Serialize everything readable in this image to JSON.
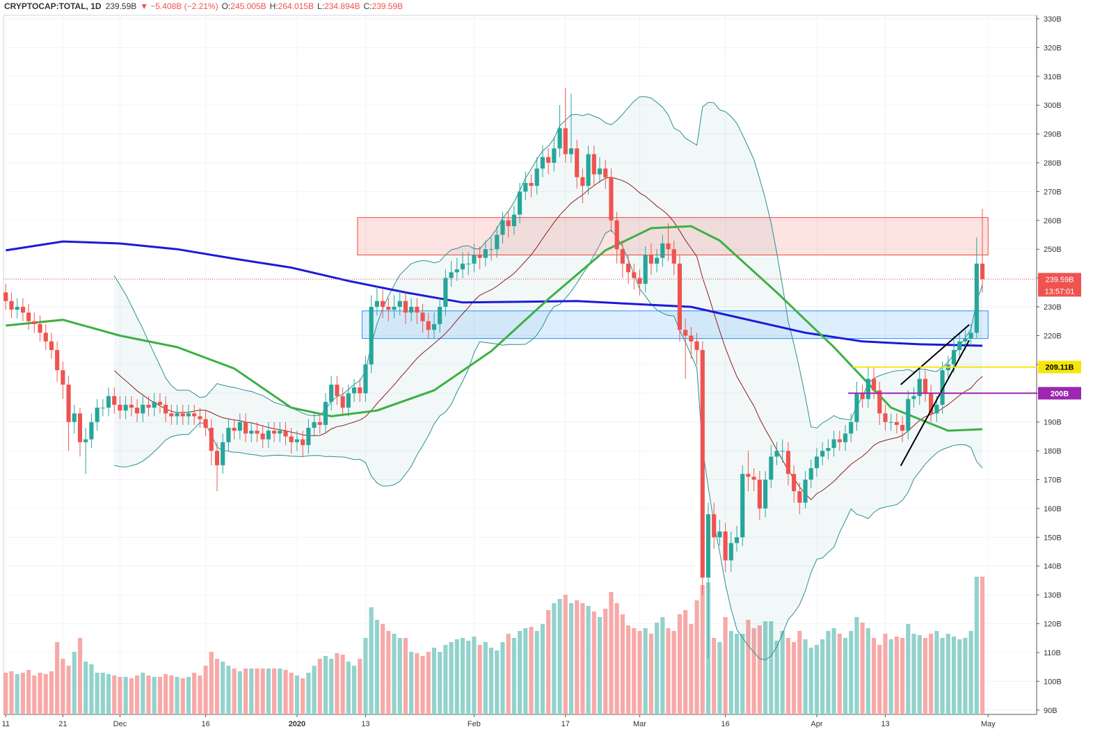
{
  "header": {
    "symbol": "CRYPTOCAP:TOTAL, 1D",
    "price": "239.59B",
    "change": "−5.408B (−2.21%)",
    "ohlc": [
      {
        "label": "O:",
        "value": "245.005B"
      },
      {
        "label": "H:",
        "value": "264.015B"
      },
      {
        "label": "L:",
        "value": "234.894B"
      },
      {
        "label": "C:",
        "value": "239.59B"
      }
    ]
  },
  "chart_data": {
    "type": "candlestick",
    "up_color": "#26a69a",
    "down_color": "#ef5350",
    "volume_up_color": "#92d2cc",
    "volume_down_color": "#f7a9a7",
    "open": [
      235,
      232,
      229,
      230,
      228,
      225,
      224,
      221,
      218,
      215,
      208,
      203,
      190,
      193,
      183,
      184,
      190,
      195,
      195,
      199,
      196,
      194,
      196,
      195,
      193,
      196,
      195,
      197,
      196,
      193,
      192,
      193,
      192,
      193,
      192,
      191,
      188,
      180,
      175,
      183,
      188,
      187,
      190,
      186,
      187,
      186,
      184,
      187,
      186,
      187,
      185,
      183,
      184,
      182,
      188,
      190,
      189,
      197,
      203,
      199,
      195,
      200,
      202,
      200,
      210,
      230,
      232,
      230,
      229,
      230,
      232,
      228,
      230,
      228,
      225,
      222,
      224,
      230,
      240,
      242,
      243,
      245,
      245,
      248,
      247,
      250,
      250,
      255,
      260,
      258,
      262,
      270,
      273,
      272,
      278,
      282,
      280,
      285,
      292,
      283,
      285,
      275,
      272,
      283,
      276,
      278,
      275,
      260,
      250,
      245,
      242,
      240,
      238,
      248,
      245,
      247,
      252,
      250,
      245,
      222,
      220,
      218,
      215,
      136,
      158,
      150,
      152,
      142,
      148,
      150,
      172,
      171,
      170,
      160,
      170,
      178,
      180,
      180,
      172,
      166,
      162,
      170,
      174,
      178,
      180,
      181,
      184,
      183,
      186,
      190,
      200,
      198,
      205,
      201,
      193,
      190,
      190,
      189,
      187,
      198,
      199,
      205,
      200,
      193,
      196,
      208,
      210,
      215,
      218,
      219,
      221,
      245.005
    ],
    "high": [
      238,
      235,
      233,
      233,
      231,
      228,
      227,
      224,
      221,
      218,
      211,
      206,
      196,
      195,
      188,
      193,
      198,
      198,
      202,
      202,
      199,
      199,
      199,
      198,
      199,
      199,
      200,
      200,
      199,
      196,
      196,
      196,
      196,
      196,
      195,
      194,
      191,
      183,
      186,
      191,
      191,
      193,
      193,
      190,
      190,
      189,
      190,
      190,
      190,
      190,
      188,
      187,
      187,
      191,
      193,
      193,
      200,
      206,
      206,
      202,
      203,
      205,
      205,
      213,
      234,
      237,
      236,
      233,
      234,
      236,
      235,
      233,
      233,
      231,
      228,
      228,
      233,
      243,
      246,
      247,
      249,
      249,
      252,
      251,
      253,
      254,
      258,
      263,
      263,
      265,
      273,
      277,
      276,
      282,
      286,
      285,
      289,
      300,
      306,
      304,
      288,
      278,
      286,
      286,
      282,
      281,
      278,
      263,
      253,
      248,
      245,
      243,
      251,
      252,
      250,
      255,
      259,
      253,
      248,
      226,
      223,
      221,
      218,
      162,
      162,
      156,
      155,
      152,
      154,
      175,
      180,
      174,
      173,
      173,
      182,
      183,
      184,
      183,
      175,
      169,
      173,
      177,
      181,
      183,
      184,
      187,
      187,
      189,
      193,
      204,
      203,
      209,
      209,
      204,
      196,
      193,
      193,
      192,
      201,
      202,
      208,
      208,
      203,
      199,
      211,
      213,
      220,
      221,
      222,
      224,
      254,
      264.015
    ],
    "low": [
      229,
      226,
      226,
      225,
      222,
      221,
      218,
      215,
      212,
      204,
      198,
      180,
      186,
      178,
      172,
      181,
      187,
      192,
      192,
      193,
      191,
      191,
      192,
      190,
      190,
      192,
      192,
      193,
      190,
      189,
      189,
      189,
      189,
      189,
      188,
      185,
      175,
      166,
      172,
      180,
      184,
      184,
      183,
      183,
      183,
      181,
      181,
      183,
      183,
      182,
      179,
      180,
      178,
      179,
      185,
      186,
      186,
      194,
      196,
      192,
      192,
      197,
      197,
      197,
      207,
      227,
      226,
      225,
      226,
      227,
      224,
      225,
      224,
      221,
      219,
      219,
      221,
      227,
      237,
      239,
      240,
      241,
      242,
      243,
      244,
      246,
      247,
      252,
      254,
      255,
      259,
      267,
      268,
      269,
      275,
      276,
      277,
      282,
      280,
      280,
      271,
      266,
      269,
      272,
      273,
      271,
      256,
      245,
      240,
      238,
      236,
      234,
      235,
      241,
      242,
      244,
      246,
      241,
      218,
      205,
      212,
      210,
      130,
      108,
      146,
      147,
      138,
      138,
      145,
      147,
      166,
      166,
      156,
      157,
      167,
      175,
      176,
      168,
      162,
      158,
      160,
      167,
      171,
      175,
      177,
      178,
      180,
      180,
      183,
      187,
      195,
      195,
      198,
      189,
      187,
      187,
      186,
      183,
      184,
      195,
      196,
      197,
      190,
      190,
      193,
      205,
      207,
      212,
      215,
      216,
      219,
      234.894
    ],
    "close": [
      232,
      229,
      230,
      228,
      225,
      224,
      221,
      218,
      215,
      208,
      203,
      190,
      193,
      183,
      184,
      190,
      195,
      195,
      199,
      196,
      194,
      196,
      195,
      193,
      196,
      195,
      197,
      196,
      193,
      192,
      193,
      192,
      193,
      192,
      191,
      188,
      180,
      175,
      183,
      188,
      187,
      190,
      186,
      187,
      186,
      184,
      187,
      186,
      187,
      185,
      183,
      184,
      182,
      188,
      190,
      189,
      197,
      203,
      199,
      195,
      200,
      202,
      200,
      210,
      230,
      232,
      230,
      229,
      230,
      232,
      228,
      230,
      228,
      225,
      222,
      224,
      230,
      240,
      242,
      243,
      245,
      245,
      248,
      247,
      250,
      250,
      255,
      260,
      258,
      262,
      270,
      273,
      272,
      278,
      282,
      280,
      285,
      292,
      283,
      285,
      275,
      272,
      283,
      276,
      278,
      275,
      260,
      250,
      245,
      242,
      240,
      238,
      248,
      245,
      247,
      252,
      250,
      245,
      222,
      220,
      218,
      215,
      136,
      158,
      150,
      152,
      142,
      148,
      150,
      172,
      171,
      170,
      160,
      170,
      178,
      180,
      180,
      172,
      166,
      162,
      170,
      174,
      178,
      180,
      181,
      184,
      183,
      186,
      190,
      200,
      198,
      205,
      201,
      193,
      190,
      190,
      189,
      187,
      198,
      199,
      205,
      200,
      193,
      196,
      208,
      210,
      215,
      218,
      219,
      221,
      245.005,
      239.59
    ],
    "volume": [
      30,
      31,
      29,
      30,
      32,
      28,
      30,
      29,
      31,
      52,
      40,
      35,
      45,
      55,
      38,
      36,
      30,
      30,
      29,
      28,
      27,
      27,
      26,
      28,
      30,
      28,
      27,
      27,
      29,
      28,
      27,
      26,
      27,
      30,
      28,
      35,
      45,
      40,
      38,
      35,
      33,
      31,
      33,
      33,
      33,
      33,
      33,
      33,
      33,
      32,
      30,
      28,
      26,
      30,
      35,
      40,
      42,
      40,
      44,
      43,
      38,
      35,
      40,
      55,
      77,
      68,
      65,
      60,
      58,
      55,
      55,
      45,
      44,
      42,
      45,
      48,
      45,
      50,
      52,
      54,
      55,
      53,
      56,
      50,
      52,
      48,
      46,
      52,
      58,
      55,
      60,
      62,
      63,
      60,
      65,
      75,
      80,
      83,
      86,
      80,
      82,
      80,
      78,
      74,
      70,
      76,
      88,
      80,
      72,
      64,
      62,
      60,
      62,
      58,
      66,
      70,
      62,
      60,
      72,
      75,
      65,
      82,
      93,
      95,
      55,
      52,
      70,
      60,
      58,
      58,
      68,
      62,
      64,
      67,
      67,
      53,
      60,
      55,
      52,
      60,
      54,
      48,
      50,
      54,
      60,
      62,
      58,
      55,
      60,
      70,
      66,
      62,
      55,
      50,
      58,
      54,
      56,
      55,
      65,
      58,
      57,
      55,
      58,
      60,
      55,
      58,
      56,
      54,
      55,
      60,
      99,
      99
    ],
    "volume_lim": [
      0,
      100
    ],
    "xlim": [
      -0.4,
      180.5
    ],
    "xticks": [
      {
        "value": 0,
        "label": "11"
      },
      {
        "value": 10,
        "label": "21"
      },
      {
        "value": 20,
        "label": "Dec"
      },
      {
        "value": 35,
        "label": "16"
      },
      {
        "value": 51,
        "label": "2020"
      },
      {
        "value": 63,
        "label": "13"
      },
      {
        "value": 82,
        "label": "Feb"
      },
      {
        "value": 98,
        "label": "17"
      },
      {
        "value": 111,
        "label": "Mar"
      },
      {
        "value": 126,
        "label": "16"
      },
      {
        "value": 142,
        "label": "Apr"
      },
      {
        "value": 154,
        "label": "13"
      },
      {
        "value": 172,
        "label": "May"
      }
    ],
    "ylim": [
      88.5,
      331.2
    ],
    "yticks": [
      {
        "value": 90,
        "label": "90B"
      },
      {
        "value": 100,
        "label": "100B"
      },
      {
        "value": 110,
        "label": "110B"
      },
      {
        "value": 120,
        "label": "120B"
      },
      {
        "value": 130,
        "label": "130B"
      },
      {
        "value": 140,
        "label": "140B"
      },
      {
        "value": 150,
        "label": "150B"
      },
      {
        "value": 160,
        "label": "160B"
      },
      {
        "value": 170,
        "label": "170B"
      },
      {
        "value": 180,
        "label": "180B"
      },
      {
        "value": 190,
        "label": "190B"
      },
      {
        "value": 200,
        "label": "200B"
      },
      {
        "value": 210,
        "label": "210B"
      },
      {
        "value": 220,
        "label": "220B"
      },
      {
        "value": 230,
        "label": "230B"
      },
      {
        "value": 240,
        "label": "240B"
      },
      {
        "value": 250,
        "label": "250B"
      },
      {
        "value": 260,
        "label": "260B"
      },
      {
        "value": 270,
        "label": "270B"
      },
      {
        "value": 280,
        "label": "280B"
      },
      {
        "value": 290,
        "label": "290B"
      },
      {
        "value": 300,
        "label": "300B"
      },
      {
        "value": 310,
        "label": "310B"
      },
      {
        "value": 320,
        "label": "320B"
      },
      {
        "value": 330,
        "label": "330B"
      }
    ],
    "grid": true,
    "bollinger": {
      "period": 20,
      "stddev": 2,
      "color": "#2a8f8f",
      "basis_color": "#8e1c1c"
    },
    "moving_averages": [
      {
        "color": "#1a1ad8",
        "x": [
          0,
          10,
          20,
          30,
          40,
          50,
          60,
          70,
          80,
          100,
          120,
          140,
          150,
          160,
          171
        ],
        "values": [
          249.6,
          252.7,
          252,
          250,
          246.7,
          243.6,
          239,
          235,
          231.5,
          232,
          230,
          221,
          218,
          217,
          216.5
        ]
      },
      {
        "color": "#3cb043",
        "x": [
          0,
          10,
          20,
          30,
          40,
          50,
          57,
          65,
          75,
          85,
          95,
          105,
          113,
          120,
          125,
          135,
          145,
          155,
          165,
          171
        ],
        "values": [
          223.5,
          225.5,
          220,
          216,
          208.6,
          195,
          192,
          194,
          201,
          214.6,
          232.7,
          249.6,
          257.3,
          258,
          253,
          235,
          216,
          195,
          187,
          187.5
        ]
      }
    ],
    "zones": [
      {
        "x": [
          61.6,
          172
        ],
        "y": [
          248,
          261
        ],
        "color": "#f44336"
      },
      {
        "x": [
          62.4,
          172
        ],
        "y": [
          219,
          228.6
        ],
        "color": "#1e90ff"
      }
    ],
    "levels": [
      {
        "value": 209.11,
        "label": "209.11B",
        "color": "#f5e60a",
        "from": 148.3
      },
      {
        "value": 200,
        "label": "200B",
        "color": "#9c27b0",
        "from": 147.5
      }
    ],
    "last_price": {
      "value": 239.59,
      "label": "239.59B",
      "countdown": "13:57:01"
    },
    "trendlines": [
      {
        "x": [
          156.7,
          168.7
        ],
        "y": [
          203,
          223.8
        ]
      },
      {
        "x": [
          156.7,
          168.7
        ],
        "y": [
          174.8,
          218.4
        ]
      }
    ]
  }
}
